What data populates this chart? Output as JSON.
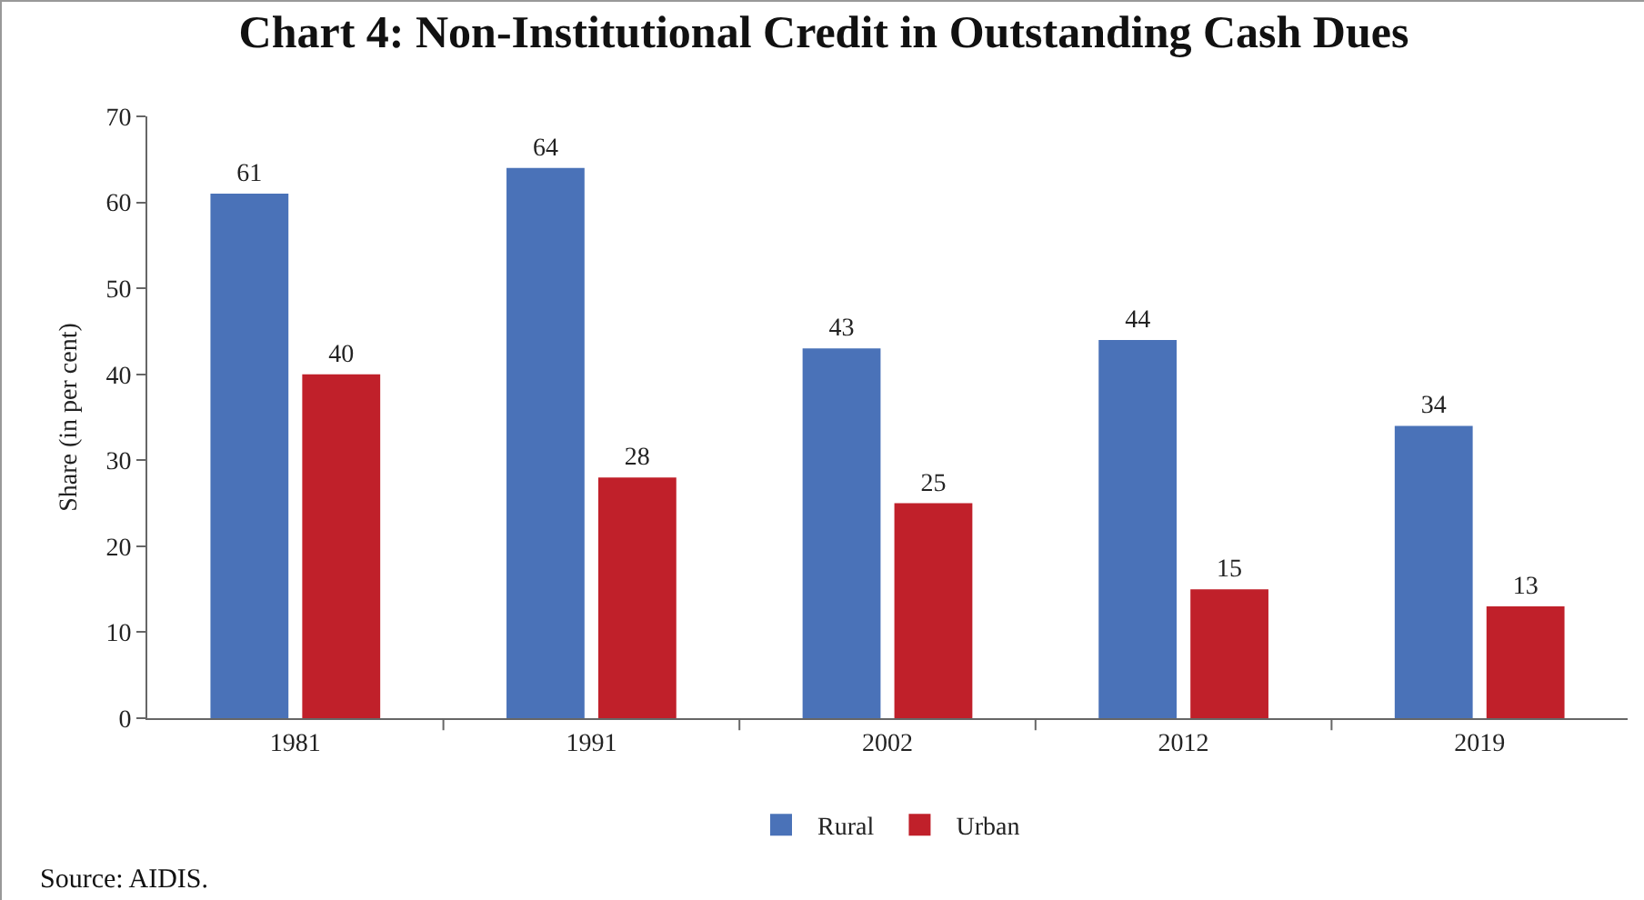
{
  "chart_data": {
    "type": "bar",
    "title": "Chart 4: Non-Institutional Credit in Outstanding Cash Dues",
    "ylabel": "Share (in per cent)",
    "categories": [
      "1981",
      "1991",
      "2002",
      "2012",
      "2019"
    ],
    "series": [
      {
        "name": "Rural",
        "color": "#4a72b8",
        "values": [
          61,
          64,
          43,
          44,
          34
        ]
      },
      {
        "name": "Urban",
        "color": "#c0202a",
        "values": [
          40,
          28,
          25,
          15,
          13
        ]
      }
    ],
    "ylim": [
      0,
      70
    ],
    "yticks": [
      0,
      10,
      20,
      30,
      40,
      50,
      60,
      70
    ],
    "grid": false,
    "legend": "bottom",
    "data_labels": true,
    "annotations": [
      "Source: AIDIS."
    ]
  }
}
